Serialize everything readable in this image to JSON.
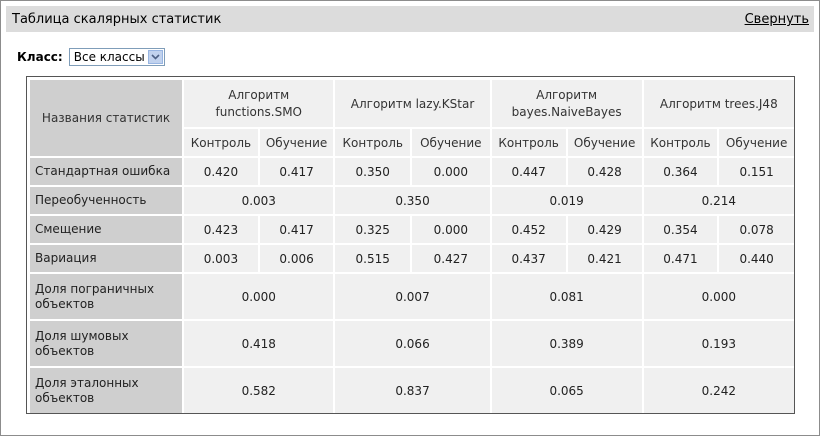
{
  "panel": {
    "title": "Таблица скалярных статистик",
    "collapse_label": "Свернуть"
  },
  "class_filter": {
    "label": "Класс:",
    "selected": "Все классы"
  },
  "table": {
    "name_header": "Названия статистик",
    "algorithms": [
      {
        "name": "Алгоритм functions.SMO"
      },
      {
        "name": "Алгоритм lazy.KStar"
      },
      {
        "name": "Алгоритм bayes.NaiveBayes"
      },
      {
        "name": "Алгоритм trees.J48"
      }
    ],
    "sub_headers": [
      "Контроль",
      "Обучение",
      "Контроль",
      "Обучение",
      "Контроль",
      "Обучение",
      "Контроль",
      "Обучение"
    ],
    "rows": [
      {
        "name": "Стандартная ошибка",
        "split": true,
        "values": [
          "0.420",
          "0.417",
          "0.350",
          "0.000",
          "0.447",
          "0.428",
          "0.364",
          "0.151"
        ]
      },
      {
        "name": "Переобученность",
        "split": false,
        "values": [
          "0.003",
          "0.350",
          "0.019",
          "0.214"
        ]
      },
      {
        "name": "Смещение",
        "split": true,
        "values": [
          "0.423",
          "0.417",
          "0.325",
          "0.000",
          "0.452",
          "0.429",
          "0.354",
          "0.078"
        ]
      },
      {
        "name": "Вариация",
        "split": true,
        "values": [
          "0.003",
          "0.006",
          "0.515",
          "0.427",
          "0.437",
          "0.421",
          "0.471",
          "0.440"
        ]
      },
      {
        "name": "Доля пограничных объектов",
        "split": false,
        "tall": true,
        "values": [
          "0.000",
          "0.007",
          "0.081",
          "0.000"
        ]
      },
      {
        "name": "Доля шумовых объектов",
        "split": false,
        "tall": true,
        "values": [
          "0.418",
          "0.066",
          "0.389",
          "0.193"
        ]
      },
      {
        "name": "Доля эталонных объектов",
        "split": false,
        "tall": true,
        "values": [
          "0.582",
          "0.837",
          "0.065",
          "0.242"
        ]
      }
    ]
  }
}
